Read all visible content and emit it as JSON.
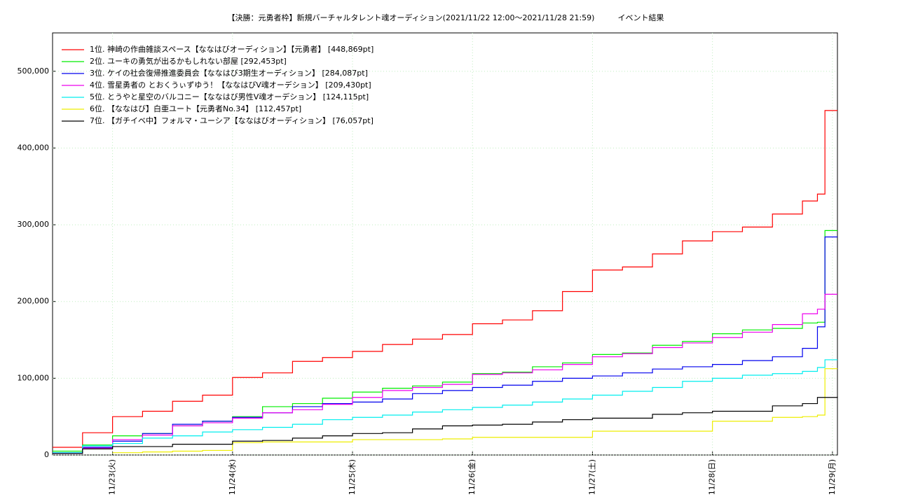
{
  "chart_data": {
    "type": "step-line",
    "title": "【決勝：元勇者枠】新規バーチャルタレント魂オーディション(2021/11/22 12:00〜2021/11/28 21:59)　　　イベント結果",
    "x": [
      12,
      18,
      24,
      30,
      36,
      42,
      48,
      54,
      60,
      66,
      72,
      78,
      84,
      90,
      96,
      102,
      108,
      114,
      120,
      126,
      132,
      138,
      144,
      150,
      156,
      162,
      165,
      166.5,
      169
    ],
    "xlim": [
      12,
      169
    ],
    "xticks": [
      {
        "value": 24,
        "label": "11/23(火)"
      },
      {
        "value": 48,
        "label": "11/24(水)"
      },
      {
        "value": 72,
        "label": "11/25(木)"
      },
      {
        "value": 96,
        "label": "11/26(金)"
      },
      {
        "value": 120,
        "label": "11/27(土)"
      },
      {
        "value": 144,
        "label": "11/28(日)"
      },
      {
        "value": 168,
        "label": "11/29(月)"
      }
    ],
    "ylim": [
      0,
      550000
    ],
    "yticks": [
      0,
      {
        "value": 100000,
        "label": "100,000"
      },
      {
        "value": 200000,
        "label": "200,000"
      },
      {
        "value": 300000,
        "label": "300,000"
      },
      {
        "value": 400000,
        "label": "400,000"
      },
      {
        "value": 500000,
        "label": "500,000"
      }
    ],
    "grid": true,
    "legend": "upper left",
    "series": [
      {
        "name": "1位. 神崎の作曲雑談スペース【ななはびオーディション】【元勇者】 [448,869pt]",
        "color": "#ff0000",
        "values": [
          10000,
          29000,
          50000,
          57000,
          70000,
          78000,
          101000,
          107000,
          122000,
          127000,
          135000,
          144000,
          151000,
          157000,
          171000,
          176000,
          188000,
          213000,
          241000,
          245000,
          262000,
          279000,
          291000,
          297000,
          314000,
          331000,
          340000,
          448869,
          448869
        ]
      },
      {
        "name": "2位. ユーキの勇気が出るかもしれない部屋 [292,453pt]",
        "color": "#00ee00",
        "values": [
          5000,
          13000,
          25000,
          28000,
          38000,
          44000,
          50000,
          63000,
          67000,
          74000,
          82000,
          87000,
          90000,
          95000,
          106000,
          108000,
          115000,
          120000,
          131000,
          133000,
          143000,
          148000,
          158000,
          163000,
          165000,
          172000,
          173000,
          292453,
          292453
        ]
      },
      {
        "name": "3位. ケイの社会復帰推進委員会【ななはび3期生オーディション】 [284,087pt]",
        "color": "#0000ee",
        "values": [
          3000,
          10000,
          18000,
          28000,
          40000,
          44000,
          49000,
          55000,
          63000,
          67000,
          69000,
          73000,
          80000,
          84000,
          88000,
          91000,
          96000,
          100000,
          103000,
          107000,
          112000,
          115000,
          118000,
          123000,
          128000,
          139000,
          167000,
          284087,
          284087
        ]
      },
      {
        "name": "4位. 雪星勇者の とおくうぃずゆう！【ななはびV魂オーデション】 [209,430pt]",
        "color": "#ee00ee",
        "values": [
          2000,
          9000,
          20000,
          26000,
          38000,
          42000,
          48000,
          55000,
          59000,
          66000,
          75000,
          84000,
          88000,
          92000,
          105000,
          107000,
          111000,
          118000,
          128000,
          132000,
          140000,
          146000,
          153000,
          160000,
          170000,
          184000,
          190000,
          209430,
          209430
        ]
      },
      {
        "name": "5位. とうやと星空のバルコニー【ななはび男性V魂オーデション】 [124,115pt]",
        "color": "#00eeee",
        "values": [
          3000,
          12000,
          15000,
          22000,
          25000,
          30000,
          33000,
          36000,
          40000,
          46000,
          49000,
          52000,
          56000,
          59000,
          62000,
          65000,
          69000,
          73000,
          78000,
          83000,
          88000,
          96000,
          100000,
          104000,
          106000,
          109000,
          114000,
          124115,
          124115
        ]
      },
      {
        "name": "6位. 【ななはび】白亜ユート【元勇者No.34】 [112,457pt]",
        "color": "#eeee00",
        "values": [
          null,
          null,
          3000,
          4000,
          5000,
          6000,
          16000,
          17000,
          17000,
          17000,
          20000,
          20000,
          20000,
          21000,
          23000,
          23000,
          23000,
          23000,
          31000,
          31000,
          31000,
          31000,
          44000,
          44000,
          49000,
          50000,
          52000,
          112457,
          112457
        ]
      },
      {
        "name": "7位. 【ガチイベ中】フォルマ・ユーシア【ななはびオーディション】 [76,057pt]",
        "color": "#000000",
        "values": [
          2000,
          8000,
          11000,
          11000,
          14000,
          14000,
          18000,
          19000,
          22000,
          25000,
          28000,
          29000,
          34000,
          38000,
          39000,
          40000,
          43000,
          46000,
          48000,
          48000,
          53000,
          55000,
          57000,
          57000,
          64000,
          67000,
          75000,
          75000,
          76057
        ]
      }
    ]
  }
}
